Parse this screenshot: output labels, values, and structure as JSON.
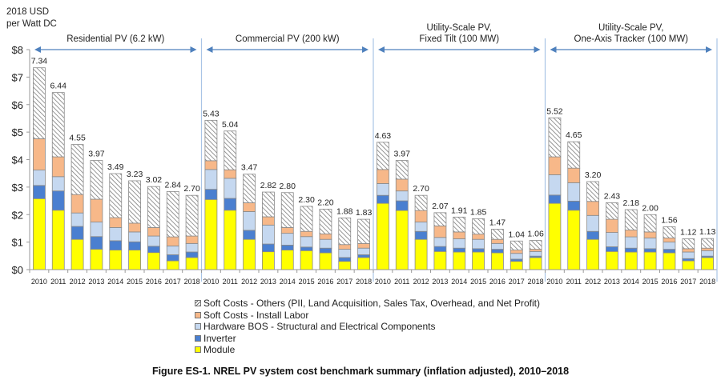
{
  "chart_data": {
    "type": "bar",
    "stacked": true,
    "title": "",
    "ylabel": "2018 USD per Watt DC",
    "ylabel_lines": [
      "2018 USD",
      "per Watt DC"
    ],
    "xlabel": "",
    "ylim": [
      0,
      8
    ],
    "yticks": [
      0,
      1,
      2,
      3,
      4,
      5,
      6,
      7,
      8
    ],
    "ytick_labels": [
      "$0",
      "$1",
      "$2",
      "$3",
      "$4",
      "$5",
      "$6",
      "$7",
      "$8"
    ],
    "grid": false,
    "legend_position": "bottom-center",
    "categories": [
      "2010",
      "2011",
      "2012",
      "2013",
      "2014",
      "2015",
      "2016",
      "2017",
      "2018"
    ],
    "segments": [
      {
        "key": "module",
        "name": "Module",
        "color": "#ffff00"
      },
      {
        "key": "inverter",
        "name": "Inverter",
        "color": "#4a7fd0"
      },
      {
        "key": "hardware_bos",
        "name": "Hardware BOS - Structural and Electrical Components",
        "color": "#c5d8f0"
      },
      {
        "key": "install_labor",
        "name": "Soft Costs - Install Labor",
        "color": "#f7b889"
      },
      {
        "key": "soft_others",
        "name": "Soft Costs - Others (PII, Land Acquisition, Sales Tax, Overhead, and Net Profit)",
        "color": "hatch"
      }
    ],
    "legend_order": [
      "soft_others",
      "install_labor",
      "hardware_bos",
      "inverter",
      "module"
    ],
    "groups": [
      {
        "label_lines": [
          "Residential PV (6.2 kW)"
        ],
        "totals": [
          7.34,
          6.44,
          4.55,
          3.97,
          3.49,
          3.23,
          3.02,
          2.84,
          2.7
        ],
        "series": {
          "module": [
            2.58,
            2.16,
            1.1,
            0.74,
            0.71,
            0.71,
            0.62,
            0.32,
            0.44
          ],
          "inverter": [
            0.48,
            0.7,
            0.47,
            0.46,
            0.34,
            0.3,
            0.23,
            0.22,
            0.2
          ],
          "hardware_bos": [
            0.56,
            0.52,
            0.49,
            0.53,
            0.48,
            0.36,
            0.37,
            0.32,
            0.31
          ],
          "install_labor": [
            1.14,
            0.72,
            0.67,
            0.83,
            0.36,
            0.32,
            0.31,
            0.33,
            0.27
          ],
          "soft_others": [
            2.58,
            2.34,
            1.82,
            1.41,
            1.6,
            1.54,
            1.49,
            1.65,
            1.48
          ]
        }
      },
      {
        "label_lines": [
          "Commercial PV (200 kW)"
        ],
        "totals": [
          5.43,
          5.04,
          3.47,
          2.82,
          2.8,
          2.3,
          2.2,
          1.88,
          1.83
        ],
        "series": {
          "module": [
            2.55,
            2.16,
            1.1,
            0.65,
            0.71,
            0.69,
            0.61,
            0.3,
            0.44
          ],
          "inverter": [
            0.37,
            0.43,
            0.33,
            0.28,
            0.18,
            0.13,
            0.17,
            0.14,
            0.1
          ],
          "hardware_bos": [
            0.72,
            0.73,
            0.68,
            0.69,
            0.43,
            0.38,
            0.32,
            0.3,
            0.24
          ],
          "install_labor": [
            0.32,
            0.31,
            0.32,
            0.3,
            0.21,
            0.19,
            0.2,
            0.17,
            0.17
          ],
          "soft_others": [
            1.47,
            1.41,
            1.04,
            0.9,
            1.27,
            0.91,
            0.9,
            0.97,
            0.88
          ]
        }
      },
      {
        "label_lines": [
          "Utility-Scale PV,",
          "Fixed Tilt (100 MW)"
        ],
        "totals": [
          4.63,
          3.97,
          2.7,
          2.07,
          1.91,
          1.85,
          1.47,
          1.04,
          1.06
        ],
        "series": {
          "module": [
            2.41,
            2.15,
            1.1,
            0.66,
            0.64,
            0.64,
            0.61,
            0.3,
            0.44
          ],
          "inverter": [
            0.29,
            0.35,
            0.29,
            0.18,
            0.14,
            0.12,
            0.13,
            0.08,
            0.05
          ],
          "hardware_bos": [
            0.43,
            0.36,
            0.34,
            0.33,
            0.34,
            0.34,
            0.21,
            0.21,
            0.17
          ],
          "install_labor": [
            0.51,
            0.43,
            0.42,
            0.42,
            0.25,
            0.19,
            0.15,
            0.12,
            0.08
          ],
          "soft_others": [
            0.99,
            0.68,
            0.55,
            0.48,
            0.54,
            0.56,
            0.37,
            0.33,
            0.32
          ]
        }
      },
      {
        "label_lines": [
          "Utility-Scale PV,",
          "One-Axis Tracker (100 MW)"
        ],
        "totals": [
          5.52,
          4.65,
          3.2,
          2.43,
          2.18,
          2.0,
          1.56,
          1.12,
          1.13
        ],
        "series": {
          "module": [
            2.41,
            2.16,
            1.1,
            0.66,
            0.64,
            0.64,
            0.61,
            0.32,
            0.44
          ],
          "inverter": [
            0.3,
            0.33,
            0.29,
            0.17,
            0.14,
            0.12,
            0.13,
            0.08,
            0.05
          ],
          "hardware_bos": [
            0.74,
            0.67,
            0.58,
            0.52,
            0.41,
            0.39,
            0.26,
            0.24,
            0.2
          ],
          "install_labor": [
            0.65,
            0.53,
            0.51,
            0.48,
            0.25,
            0.22,
            0.15,
            0.12,
            0.09
          ],
          "soft_others": [
            1.42,
            0.96,
            0.72,
            0.6,
            0.74,
            0.63,
            0.41,
            0.36,
            0.35
          ]
        }
      }
    ]
  },
  "legend": {
    "items": [
      {
        "label": "Soft Costs - Others (PII, Land Acquisition, Sales Tax, Overhead, and Net Profit)",
        "color": "hatch"
      },
      {
        "label": "Soft Costs - Install Labor",
        "color": "#f7b889"
      },
      {
        "label": "Hardware BOS - Structural and Electrical Components",
        "color": "#c5d8f0"
      },
      {
        "label": "Inverter",
        "color": "#4a7fd0"
      },
      {
        "label": "Module",
        "color": "#ffff00"
      }
    ]
  },
  "caption": "Figure ES-1. NREL PV system cost benchmark summary (inflation adjusted), 2010–2018",
  "colors": {
    "separator": "#a9c4e6",
    "arrow": "#4f81bd",
    "bar_outline": "#8a8a8a",
    "hatch_line": "#6a6a6a"
  }
}
